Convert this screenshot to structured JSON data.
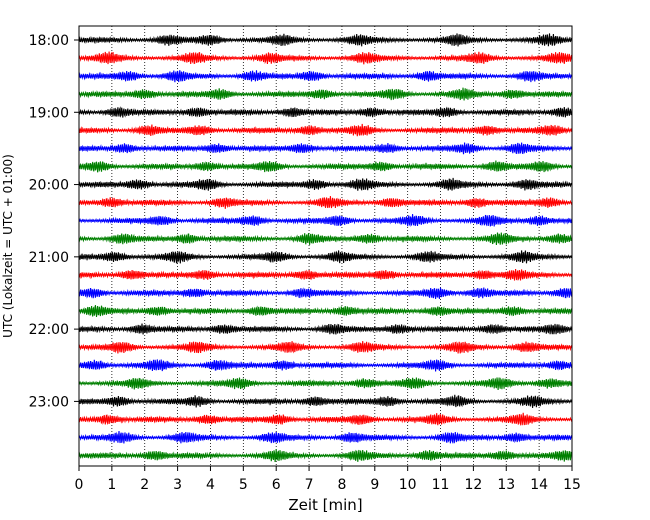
{
  "chart_data": {
    "type": "line",
    "chart_kind": "helicorder (seismogram drum plot)",
    "xlabel": "Zeit  [min]",
    "ylabel": "UTC (Lokalzeit = UTC + 01:00)",
    "xlim": [
      0,
      15
    ],
    "x_ticks": [
      "0",
      "1",
      "2",
      "3",
      "4",
      "5",
      "6",
      "7",
      "8",
      "9",
      "10",
      "11",
      "12",
      "13",
      "14",
      "15"
    ],
    "y_tick_labels": [
      "18:00",
      "19:00",
      "20:00",
      "21:00",
      "22:00",
      "23:00"
    ],
    "y_tick_trace_index": [
      0,
      4,
      8,
      12,
      16,
      20
    ],
    "trace_interval_minutes": 15,
    "trace_count": 24,
    "trace_colors": [
      "#000000",
      "#ff0000",
      "#0000ff",
      "#008000"
    ],
    "vertical_grid": "dotted, every 1 min",
    "traces": [
      {
        "start": "18:00",
        "bursts_min": [
          2.7,
          4.0,
          6.2,
          8.5,
          11.5,
          14.3
        ]
      },
      {
        "start": "18:15",
        "bursts_min": [
          0.9,
          3.5,
          5.8,
          8.7,
          12.2,
          14.6
        ]
      },
      {
        "start": "18:30",
        "bursts_min": [
          1.5,
          3.0,
          5.3,
          7.1,
          10.6,
          13.7
        ]
      },
      {
        "start": "18:45",
        "bursts_min": [
          2.0,
          4.3,
          7.4,
          9.6,
          11.7,
          13.2
        ]
      },
      {
        "start": "19:00",
        "bursts_min": [
          1.2,
          3.6,
          6.5,
          8.9,
          11.2,
          14.7
        ]
      },
      {
        "start": "19:15",
        "bursts_min": [
          2.1,
          3.7,
          7.0,
          8.6,
          12.4,
          14.4
        ]
      },
      {
        "start": "19:30",
        "bursts_min": [
          1.4,
          4.2,
          6.8,
          9.4,
          11.8,
          13.4
        ]
      },
      {
        "start": "19:45",
        "bursts_min": [
          0.6,
          3.9,
          5.8,
          9.2,
          12.7,
          14.1
        ]
      },
      {
        "start": "20:00",
        "bursts_min": [
          1.8,
          3.9,
          7.2,
          8.6,
          11.3,
          13.6
        ]
      },
      {
        "start": "20:15",
        "bursts_min": [
          1.0,
          4.4,
          7.6,
          9.5,
          12.1,
          14.3
        ]
      },
      {
        "start": "20:30",
        "bursts_min": [
          2.5,
          5.3,
          7.9,
          10.2,
          12.5,
          14.0
        ]
      },
      {
        "start": "20:45",
        "bursts_min": [
          1.3,
          3.3,
          7.0,
          8.8,
          12.8,
          14.6
        ]
      },
      {
        "start": "21:00",
        "bursts_min": [
          1.1,
          3.0,
          6.0,
          7.9,
          10.6,
          13.5
        ]
      },
      {
        "start": "21:15",
        "bursts_min": [
          1.6,
          3.8,
          6.9,
          9.3,
          12.3,
          13.3
        ]
      },
      {
        "start": "21:30",
        "bursts_min": [
          0.4,
          3.5,
          6.8,
          10.9,
          12.2,
          14.8
        ]
      },
      {
        "start": "21:45",
        "bursts_min": [
          0.5,
          2.4,
          5.5,
          8.1,
          10.9,
          13.2
        ]
      },
      {
        "start": "22:00",
        "bursts_min": [
          1.9,
          4.4,
          7.7,
          9.7,
          12.6,
          14.5
        ]
      },
      {
        "start": "22:15",
        "bursts_min": [
          1.3,
          3.6,
          6.4,
          8.6,
          11.6,
          13.6
        ]
      },
      {
        "start": "22:30",
        "bursts_min": [
          0.5,
          2.4,
          4.2,
          6.2,
          10.9,
          14.6
        ]
      },
      {
        "start": "22:45",
        "bursts_min": [
          1.8,
          4.9,
          8.7,
          10.2,
          12.8,
          14.3
        ]
      },
      {
        "start": "23:00",
        "bursts_min": [
          1.2,
          3.6,
          7.2,
          9.4,
          11.5,
          13.8
        ]
      },
      {
        "start": "23:15",
        "bursts_min": [
          0.9,
          3.9,
          6.1,
          8.6,
          10.9,
          13.5
        ]
      },
      {
        "start": "23:30",
        "bursts_min": [
          1.3,
          3.2,
          5.9,
          8.3,
          11.3,
          13.3
        ]
      },
      {
        "start": "23:45",
        "bursts_min": [
          2.3,
          6.0,
          8.5,
          10.6,
          12.9,
          14.8
        ]
      }
    ]
  }
}
